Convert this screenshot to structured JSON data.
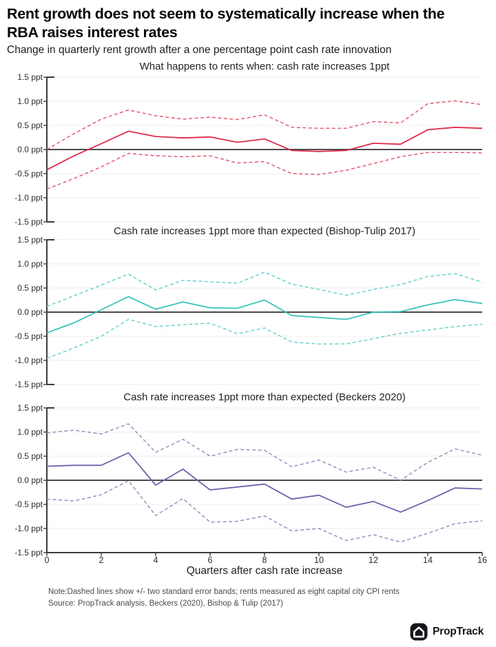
{
  "header": {
    "title_lines": [
      "Rent growth does not seem to systematically increase when the",
      "RBA raises interest rates"
    ],
    "subtitle": "Change in quarterly rent growth after a one percentage point cash rate innovation"
  },
  "axis": {
    "y_tick_labels": [
      "1.5 ppt",
      "1.0 ppt",
      "0.5 ppt",
      "0.0 ppt",
      "-0.5 ppt",
      "-1.0 ppt",
      "-1.5 ppt"
    ],
    "y_tick_values": [
      1.5,
      1.0,
      0.5,
      0.0,
      -0.5,
      -1.0,
      -1.5
    ],
    "x_tick_labels": [
      "0",
      "2",
      "4",
      "6",
      "8",
      "10",
      "12",
      "14",
      "16"
    ],
    "x_tick_values": [
      0,
      2,
      4,
      6,
      8,
      10,
      12,
      14,
      16
    ],
    "xlabel": "Quarters after cash rate increase",
    "x_range": [
      0,
      16
    ],
    "y_range": [
      -1.5,
      1.5
    ],
    "grid": true
  },
  "chart_data": [
    {
      "type": "line",
      "title": "What happens to rents when: cash rate increases 1ppt",
      "color": "#de2b4a",
      "band_color": "#e25168",
      "x": [
        0,
        1,
        2,
        3,
        4,
        5,
        6,
        7,
        8,
        9,
        10,
        11,
        12,
        13,
        14,
        15,
        16
      ],
      "ylim": [
        -1.5,
        1.5
      ],
      "series": [
        {
          "name": "rent growth response",
          "style": "solid",
          "values": [
            -0.42,
            -0.13,
            0.12,
            0.38,
            0.27,
            0.24,
            0.26,
            0.15,
            0.22,
            -0.02,
            -0.04,
            -0.02,
            0.13,
            0.11,
            0.41,
            0.46,
            0.44
          ]
        },
        {
          "name": "upper band (+2 s.e.)",
          "style": "dashed",
          "values": [
            0.0,
            0.33,
            0.63,
            0.82,
            0.7,
            0.63,
            0.67,
            0.62,
            0.72,
            0.46,
            0.44,
            0.44,
            0.58,
            0.55,
            0.95,
            1.01,
            0.93
          ]
        },
        {
          "name": "lower band (-2 s.e.)",
          "style": "dashed",
          "values": [
            -0.82,
            -0.6,
            -0.36,
            -0.08,
            -0.13,
            -0.15,
            -0.13,
            -0.28,
            -0.25,
            -0.5,
            -0.52,
            -0.43,
            -0.29,
            -0.15,
            -0.06,
            -0.06,
            -0.07
          ]
        }
      ]
    },
    {
      "type": "line",
      "title": "Cash rate increases 1ppt more than expected (Bishop-Tulip 2017)",
      "color": "#38c4bd",
      "band_color": "#5fd0c9",
      "x": [
        0,
        1,
        2,
        3,
        4,
        5,
        6,
        7,
        8,
        9,
        10,
        11,
        12,
        13,
        14,
        15,
        16
      ],
      "ylim": [
        -1.5,
        1.5
      ],
      "series": [
        {
          "name": "rent growth response",
          "style": "solid",
          "values": [
            -0.43,
            -0.22,
            0.05,
            0.32,
            0.06,
            0.21,
            0.09,
            0.08,
            0.25,
            -0.07,
            -0.11,
            -0.15,
            0.0,
            0.01,
            0.15,
            0.26,
            0.18
          ]
        },
        {
          "name": "upper band (+2 s.e.)",
          "style": "dashed",
          "values": [
            0.12,
            0.34,
            0.56,
            0.79,
            0.46,
            0.66,
            0.63,
            0.6,
            0.83,
            0.58,
            0.47,
            0.35,
            0.47,
            0.57,
            0.74,
            0.8,
            0.62
          ]
        },
        {
          "name": "lower band (-2 s.e.)",
          "style": "dashed",
          "values": [
            -0.96,
            -0.74,
            -0.5,
            -0.15,
            -0.3,
            -0.26,
            -0.23,
            -0.45,
            -0.33,
            -0.62,
            -0.66,
            -0.66,
            -0.55,
            -0.44,
            -0.37,
            -0.3,
            -0.25
          ]
        }
      ]
    },
    {
      "type": "line",
      "title": "Cash rate increases 1ppt more than expected (Beckers 2020)",
      "color": "#7460ad",
      "band_color": "#9488bf",
      "x": [
        0,
        1,
        2,
        3,
        4,
        5,
        6,
        7,
        8,
        9,
        10,
        11,
        12,
        13,
        14,
        15,
        16
      ],
      "ylim": [
        -1.5,
        1.5
      ],
      "series": [
        {
          "name": "rent growth response",
          "style": "solid",
          "values": [
            0.29,
            0.31,
            0.31,
            0.57,
            -0.1,
            0.23,
            -0.2,
            -0.14,
            -0.08,
            -0.39,
            -0.31,
            -0.56,
            -0.44,
            -0.66,
            -0.42,
            -0.16,
            -0.18
          ]
        },
        {
          "name": "upper band (+2 s.e.)",
          "style": "dashed",
          "values": [
            0.98,
            1.04,
            0.96,
            1.17,
            0.58,
            0.85,
            0.5,
            0.64,
            0.62,
            0.28,
            0.42,
            0.17,
            0.27,
            0.0,
            0.37,
            0.65,
            0.52
          ]
        },
        {
          "name": "lower band (-2 s.e.)",
          "style": "dashed",
          "values": [
            -0.39,
            -0.43,
            -0.3,
            -0.01,
            -0.73,
            -0.38,
            -0.87,
            -0.85,
            -0.74,
            -1.05,
            -1.0,
            -1.25,
            -1.13,
            -1.28,
            -1.1,
            -0.9,
            -0.84
          ]
        }
      ]
    }
  ],
  "footer": {
    "note": "Note:Dashed lines show +/- two standard error bands; rents measured as eight capital city CPI rents",
    "source": "Source: PropTrack analysis, Beckers (2020), Bishop & Tulip (2017)",
    "brand": "PropTrack"
  },
  "colors": {
    "background": "#ffffff",
    "zero_line": "#4a4a4a",
    "spine": "#3b3b3b",
    "grid": "#ededed",
    "title_text": "#060606",
    "accent_red": "#de2b4a",
    "accent_teal": "#38c4bd",
    "accent_purple": "#7460ad",
    "logo_black": "#15151c"
  }
}
